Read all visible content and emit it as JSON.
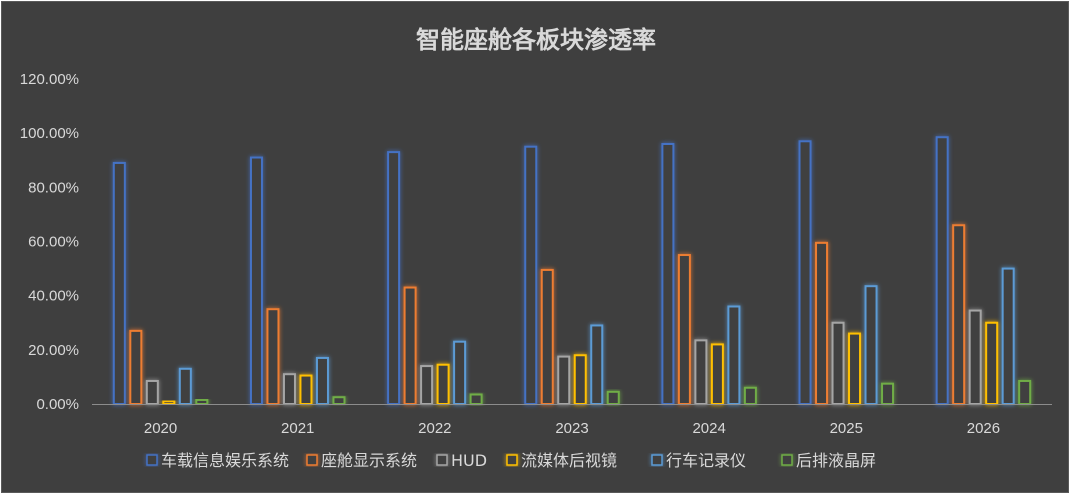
{
  "chart_data": {
    "type": "bar",
    "title": "智能座舱各板块渗透率",
    "categories": [
      "2020",
      "2021",
      "2022",
      "2023",
      "2024",
      "2025",
      "2026"
    ],
    "yticks": [
      "0.00%",
      "20.00%",
      "40.00%",
      "60.00%",
      "80.00%",
      "100.00%",
      "120.00%"
    ],
    "ylim": [
      0,
      120
    ],
    "grid": false,
    "legend_position": "bottom",
    "series": [
      {
        "name": "车载信息娱乐系统",
        "color": "#4472c4",
        "values": [
          89,
          91,
          93,
          95,
          96,
          97,
          98.5
        ]
      },
      {
        "name": "座舱显示系统",
        "color": "#ed7d31",
        "values": [
          27,
          35,
          43,
          49.5,
          55,
          59.5,
          66
        ]
      },
      {
        "name": "HUD",
        "color": "#a5a5a5",
        "values": [
          8.5,
          11,
          14,
          17.5,
          23.5,
          30,
          34.5
        ]
      },
      {
        "name": "流媒体后视镜",
        "color": "#ffc000",
        "values": [
          1,
          10.5,
          14.5,
          18,
          22,
          26,
          30
        ]
      },
      {
        "name": "行车记录仪",
        "color": "#5b9bd5",
        "values": [
          13,
          17,
          23,
          29,
          36,
          43.5,
          50
        ]
      },
      {
        "name": "后排液晶屏",
        "color": "#70ad47",
        "values": [
          1.5,
          2.5,
          3.5,
          4.5,
          6,
          7.5,
          8.5
        ]
      }
    ]
  }
}
